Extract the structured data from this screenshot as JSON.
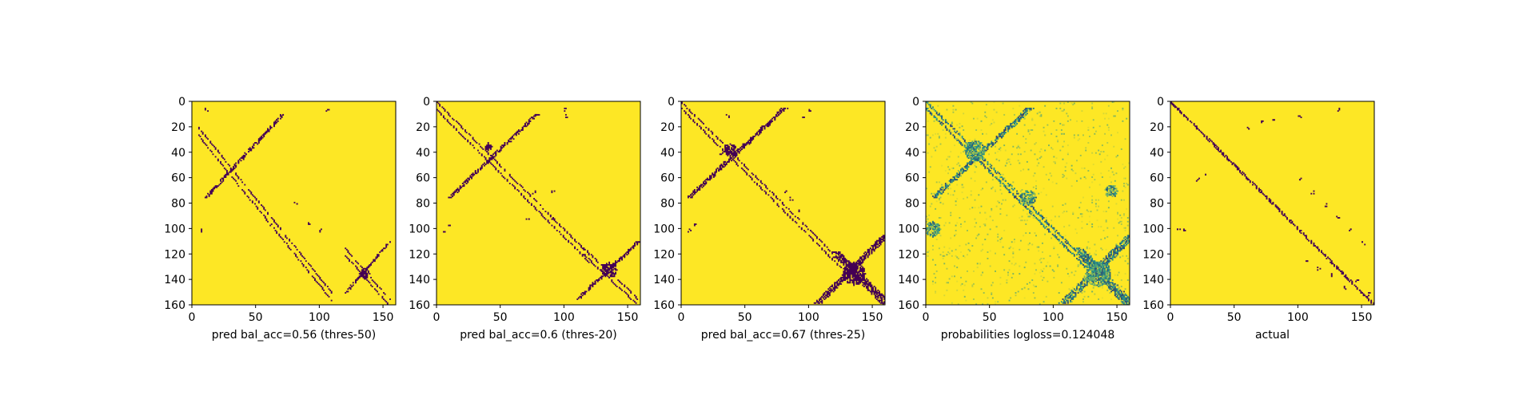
{
  "chart_data": [
    {
      "type": "heatmap",
      "xlabel": "pred bal_acc=0.56 (thres-50)",
      "colors": {
        "low": "#440154",
        "high": "#fde725"
      },
      "xticks": [
        0,
        50,
        100,
        150
      ],
      "yticks": [
        0,
        20,
        40,
        60,
        80,
        100,
        120,
        140,
        160
      ],
      "xlim": [
        0,
        160
      ],
      "ylim": [
        160,
        0
      ],
      "intensity": 0.8,
      "diagonal": false,
      "features": [
        {
          "kind": "band",
          "x": [
            5,
            110
          ],
          "y": [
            20,
            150
          ],
          "offset": 6,
          "width": 1
        },
        {
          "kind": "band",
          "x": [
            10,
            70
          ],
          "y": [
            75,
            10
          ],
          "offset": 0,
          "width": 3
        },
        {
          "kind": "band",
          "x": [
            120,
            155
          ],
          "y": [
            150,
            110
          ],
          "offset": 0,
          "width": 2
        },
        {
          "kind": "band",
          "x": [
            120,
            155
          ],
          "y": [
            115,
            155
          ],
          "offset": 5,
          "width": 1
        },
        {
          "kind": "blob",
          "x": 135,
          "y": 135,
          "r": 4
        },
        {
          "kind": "dots",
          "x": [
            5,
            10,
            105,
            100,
            90,
            80
          ],
          "y": [
            100,
            5,
            5,
            100,
            95,
            78
          ]
        }
      ]
    },
    {
      "type": "heatmap",
      "xlabel": "pred bal_acc=0.6 (thres-20)",
      "colors": {
        "low": "#440154",
        "high": "#fde725"
      },
      "xticks": [
        0,
        50,
        100,
        150
      ],
      "yticks": [
        0,
        20,
        40,
        60,
        80,
        100,
        120,
        140,
        160
      ],
      "xlim": [
        0,
        160
      ],
      "ylim": [
        160,
        0
      ],
      "intensity": 1.0,
      "diagonal": false,
      "features": [
        {
          "kind": "band",
          "x": [
            0,
            120
          ],
          "y": [
            0,
            120
          ],
          "offset": 6,
          "width": 1
        },
        {
          "kind": "band",
          "x": [
            10,
            78
          ],
          "y": [
            75,
            10
          ],
          "offset": 0,
          "width": 3
        },
        {
          "kind": "band",
          "x": [
            110,
            158
          ],
          "y": [
            155,
            110
          ],
          "offset": 0,
          "width": 3
        },
        {
          "kind": "band",
          "x": [
            115,
            158
          ],
          "y": [
            115,
            155
          ],
          "offset": 5,
          "width": 1
        },
        {
          "kind": "blob",
          "x": 135,
          "y": 132,
          "r": 6
        },
        {
          "kind": "blob",
          "x": 40,
          "y": 35,
          "r": 3
        },
        {
          "kind": "dots",
          "x": [
            5,
            8,
            100,
            100,
            90,
            70,
            75,
            90
          ],
          "y": [
            100,
            95,
            5,
            10,
            90,
            90,
            70,
            70
          ]
        }
      ]
    },
    {
      "type": "heatmap",
      "xlabel": "pred bal_acc=0.67 (thres-25)",
      "colors": {
        "low": "#440154",
        "high": "#fde725"
      },
      "xticks": [
        0,
        50,
        100,
        150
      ],
      "yticks": [
        0,
        20,
        40,
        60,
        80,
        100,
        120,
        140,
        160
      ],
      "xlim": [
        0,
        160
      ],
      "ylim": [
        160,
        0
      ],
      "intensity": 1.2,
      "diagonal": false,
      "features": [
        {
          "kind": "band",
          "x": [
            0,
            125
          ],
          "y": [
            0,
            125
          ],
          "offset": 5,
          "width": 1
        },
        {
          "kind": "band",
          "x": [
            5,
            80
          ],
          "y": [
            75,
            5
          ],
          "offset": 0,
          "width": 4
        },
        {
          "kind": "band",
          "x": [
            105,
            158
          ],
          "y": [
            158,
            105
          ],
          "offset": 0,
          "width": 6
        },
        {
          "kind": "band",
          "x": [
            120,
            158
          ],
          "y": [
            118,
            155
          ],
          "offset": 4,
          "width": 4
        },
        {
          "kind": "blob",
          "x": 135,
          "y": 135,
          "r": 9
        },
        {
          "kind": "blob",
          "x": 38,
          "y": 38,
          "r": 5
        },
        {
          "kind": "dots",
          "x": [
            5,
            10,
            100,
            95,
            90,
            85,
            80,
            35,
            30
          ],
          "y": [
            100,
            95,
            5,
            10,
            85,
            75,
            70,
            10,
            40
          ]
        }
      ]
    },
    {
      "type": "heatmap",
      "xlabel": "probabilities logloss=0.124048",
      "colors": {
        "low": "#440154",
        "mid": "#21918c",
        "high": "#fde725"
      },
      "xticks": [
        0,
        50,
        100,
        150
      ],
      "yticks": [
        0,
        20,
        40,
        60,
        80,
        100,
        120,
        140,
        160
      ],
      "xlim": [
        0,
        160
      ],
      "ylim": [
        160,
        0
      ],
      "intensity": 0.7,
      "diagonal": true,
      "continuous": true,
      "features": [
        {
          "kind": "band",
          "x": [
            0,
            125
          ],
          "y": [
            0,
            125
          ],
          "offset": 5,
          "width": 2
        },
        {
          "kind": "band",
          "x": [
            5,
            80
          ],
          "y": [
            75,
            5
          ],
          "offset": 0,
          "width": 5
        },
        {
          "kind": "band",
          "x": [
            105,
            158
          ],
          "y": [
            158,
            105
          ],
          "offset": 0,
          "width": 8
        },
        {
          "kind": "band",
          "x": [
            118,
            158
          ],
          "y": [
            115,
            158
          ],
          "offset": 4,
          "width": 6
        },
        {
          "kind": "blob",
          "x": 135,
          "y": 135,
          "r": 10
        },
        {
          "kind": "blob",
          "x": 38,
          "y": 38,
          "r": 8
        },
        {
          "kind": "blob",
          "x": 80,
          "y": 75,
          "r": 6
        },
        {
          "kind": "blob",
          "x": 145,
          "y": 70,
          "r": 5
        },
        {
          "kind": "blob",
          "x": 5,
          "y": 100,
          "r": 6
        }
      ]
    },
    {
      "type": "heatmap",
      "xlabel": "actual",
      "colors": {
        "low": "#440154",
        "high": "#fde725"
      },
      "xticks": [
        0,
        50,
        100,
        150
      ],
      "yticks": [
        0,
        20,
        40,
        60,
        80,
        100,
        120,
        140,
        160
      ],
      "xlim": [
        0,
        160
      ],
      "ylim": [
        160,
        0
      ],
      "intensity": 1.0,
      "diagonal": true,
      "features": [
        {
          "kind": "band",
          "x": [
            0,
            160
          ],
          "y": [
            0,
            160
          ],
          "offset": 0,
          "width": 2
        },
        {
          "kind": "dots",
          "x": [
            60,
            70,
            80,
            100,
            110,
            120,
            130,
            140,
            150,
            155,
            20,
            25,
            10,
            5,
            105,
            115,
            125,
            135,
            145,
            158,
            130,
            100
          ],
          "y": [
            20,
            15,
            12,
            60,
            70,
            80,
            90,
            100,
            110,
            150,
            60,
            55,
            100,
            100,
            125,
            130,
            135,
            145,
            140,
            10,
            5,
            10
          ]
        }
      ]
    }
  ]
}
